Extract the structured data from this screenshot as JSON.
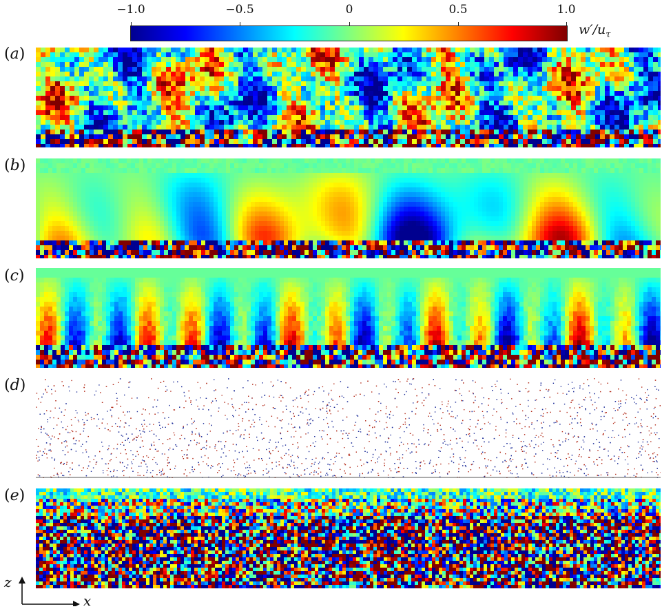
{
  "colorbar": {
    "ticks": [
      "−1.0",
      "−0.5",
      "0",
      "0.5",
      "1.0"
    ],
    "tick_values": [
      -1.0,
      -0.5,
      0,
      0.5,
      1.0
    ],
    "range": [
      -1.0,
      1.0
    ],
    "label_main": "w′/u",
    "label_sub": "τ",
    "colormap": [
      "#00008f",
      "#0000ff",
      "#0080ff",
      "#00ffff",
      "#80ff80",
      "#ffff00",
      "#ff8000",
      "#ff0000",
      "#800000"
    ]
  },
  "panels": [
    {
      "label_open": "(",
      "letter": "a",
      "label_close": ")",
      "kind": "field"
    },
    {
      "label_open": "(",
      "letter": "b",
      "label_close": ")",
      "kind": "smooth"
    },
    {
      "label_open": "(",
      "letter": "c",
      "label_close": ")",
      "kind": "streaky"
    },
    {
      "label_open": "(",
      "letter": "d",
      "label_close": ")",
      "kind": "scatter"
    },
    {
      "label_open": "(",
      "letter": "e",
      "label_close": ")",
      "kind": "dense"
    }
  ],
  "axes": {
    "x": "x",
    "z": "z"
  }
}
